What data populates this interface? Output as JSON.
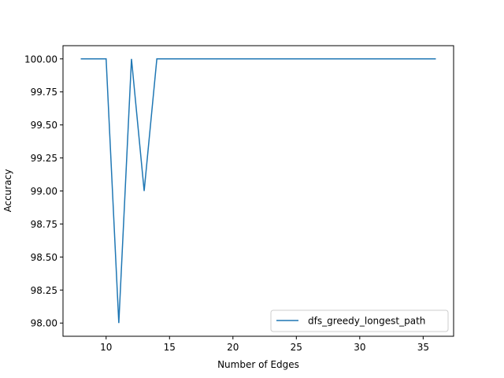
{
  "chart_data": {
    "type": "line",
    "title": "",
    "xlabel": "Number of Edges",
    "ylabel": "Accuracy",
    "xlim": [
      6.6,
      37.4
    ],
    "ylim": [
      97.9,
      100.1
    ],
    "grid": false,
    "legend_position": "lower-right",
    "x_ticks": [
      10,
      15,
      20,
      25,
      30,
      35
    ],
    "x_tick_labels": [
      "10",
      "15",
      "20",
      "25",
      "30",
      "35"
    ],
    "y_ticks": [
      98.0,
      98.25,
      98.5,
      98.75,
      99.0,
      99.25,
      99.5,
      99.75,
      100.0
    ],
    "y_tick_labels": [
      "98.00",
      "98.25",
      "98.50",
      "98.75",
      "99.00",
      "99.25",
      "99.50",
      "99.75",
      "100.00"
    ],
    "series": [
      {
        "name": "dfs_greedy_longest_path",
        "color": "#1f77b4",
        "x": [
          8,
          9,
          10,
          11,
          12,
          13,
          14,
          15,
          16,
          17,
          18,
          19,
          20,
          21,
          22,
          23,
          24,
          25,
          26,
          27,
          28,
          29,
          30,
          31,
          32,
          33,
          34,
          35,
          36
        ],
        "y": [
          100,
          100,
          100,
          98,
          100,
          99,
          100,
          100,
          100,
          100,
          100,
          100,
          100,
          100,
          100,
          100,
          100,
          100,
          100,
          100,
          100,
          100,
          100,
          100,
          100,
          100,
          100,
          100,
          100
        ]
      }
    ]
  }
}
